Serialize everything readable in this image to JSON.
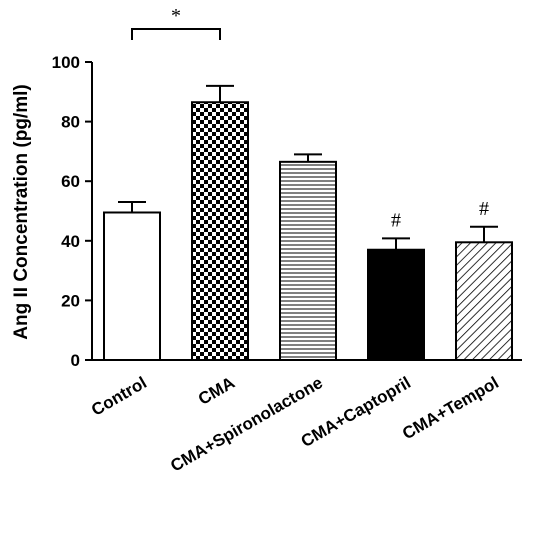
{
  "chart_data": {
    "type": "bar",
    "title": "",
    "xlabel": "",
    "ylabel": "Ang II Concentration (pg/ml)",
    "ylim": [
      0,
      100
    ],
    "yticks": [
      0,
      20,
      40,
      60,
      80,
      100
    ],
    "categories": [
      "Control",
      "CMA",
      "CMA+Spironolactone",
      "CMA+Captopril",
      "CMA+Tempol"
    ],
    "values": [
      49.5,
      86.5,
      66.5,
      37.0,
      39.5
    ],
    "errors": [
      3.5,
      5.5,
      2.5,
      3.8,
      5.2
    ],
    "fills": [
      "white",
      "checker",
      "hlines",
      "black",
      "diagonal"
    ],
    "markers": [
      "",
      "",
      "",
      "#",
      "#"
    ],
    "significance": {
      "from": "Control",
      "to": "CMA",
      "label": "*"
    },
    "grid": false,
    "legend": "none",
    "colors": {
      "axis": "#000000",
      "bar_stroke": "#000000",
      "solid": "#000000",
      "background": "#ffffff"
    }
  }
}
